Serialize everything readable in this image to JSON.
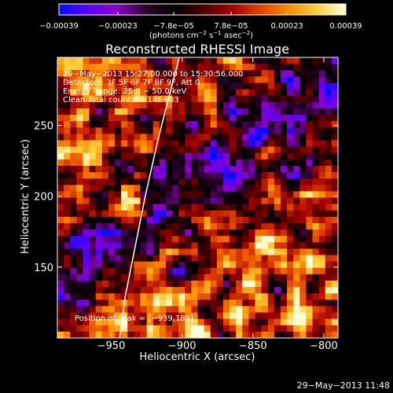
{
  "chart_data": {
    "type": "heatmap",
    "title": "Reconstructed RHESSI Image",
    "xlabel": "Heliocentric X (arcsec)",
    "ylabel": "Heliocentric Y (arcsec)",
    "xlim": [
      -988,
      -790
    ],
    "ylim": [
      100,
      298
    ],
    "xticks": [
      -950,
      -900,
      -850,
      -800
    ],
    "xtick_labels": [
      "−950",
      "−900",
      "−850",
      "−800"
    ],
    "yticks": [
      150,
      200,
      250
    ],
    "ytick_labels": [
      "150",
      "200",
      "250"
    ],
    "colorbar": {
      "min": -0.00039,
      "max": 0.00039,
      "ticks": [
        -0.00039,
        -0.00023,
        -7.8e-05,
        7.8e-05,
        0.00023,
        0.00039
      ],
      "tick_labels": [
        "−0.00039",
        "−0.00023",
        "−7.8e−05",
        "7.8e−05",
        "0.00023",
        "0.00039"
      ],
      "colors": [
        "#0010ff",
        "#5a00ff",
        "#8a00c8",
        "#300030",
        "#000000",
        "#4a0000",
        "#a00000",
        "#e04000",
        "#ff8a00",
        "#ffd040",
        "#ffffd8"
      ],
      "units_parts": [
        "(photons cm",
        "−2",
        " s",
        "−1",
        " asec",
        "−2",
        ")"
      ]
    },
    "peak": {
      "x": -939,
      "y": 189
    },
    "limb_curve": [
      {
        "x": -944,
        "y": 100
      },
      {
        "x": -940,
        "y": 130
      },
      {
        "x": -933,
        "y": 165
      },
      {
        "x": -926,
        "y": 200
      },
      {
        "x": -917,
        "y": 240
      },
      {
        "x": -908,
        "y": 275
      },
      {
        "x": -902,
        "y": 298
      }
    ]
  },
  "annotations": {
    "time_range": "29−May−2013 15:27:00.000 to 15:30:56.000",
    "detectors": "Detectors: 3F 5F 6F 7F 8F 9F, Att 0",
    "energy_range": "Energy Range: 25.0 − 50.0 keV",
    "clean_counts": "Clean     Total counts: 9.14E+03",
    "peak_position": "Position of Peak = [−939,189]"
  },
  "timestamp": "29−May−2013 11:48"
}
